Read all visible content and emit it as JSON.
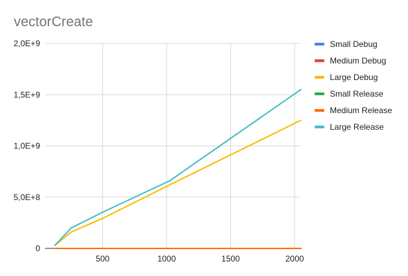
{
  "chart_data": {
    "type": "line",
    "title": "vectorCreate",
    "xlabel": "",
    "ylabel": "",
    "xlim": [
      50,
      2048
    ],
    "ylim": [
      0,
      2000000000
    ],
    "x_ticks": [
      {
        "value": 500,
        "label": "500"
      },
      {
        "value": 1000,
        "label": "1000"
      },
      {
        "value": 1500,
        "label": "1500"
      },
      {
        "value": 2000,
        "label": "2000"
      }
    ],
    "y_ticks": [
      {
        "value": 0,
        "label": "0"
      },
      {
        "value": 500000000,
        "label": "5,0E+8"
      },
      {
        "value": 1000000000,
        "label": "1,0E+9"
      },
      {
        "value": 1500000000,
        "label": "1,5E+9"
      },
      {
        "value": 2000000000,
        "label": "2,0E+9"
      }
    ],
    "grid": true,
    "legend_position": "right",
    "series": [
      {
        "name": "Small Debug",
        "color": "#4285f4",
        "x": [
          128,
          256,
          512,
          1024,
          2048
        ],
        "y": [
          0,
          0,
          0,
          0,
          0
        ]
      },
      {
        "name": "Medium Debug",
        "color": "#ea4335",
        "x": [
          128,
          256,
          512,
          1024,
          2048
        ],
        "y": [
          0,
          0,
          0,
          0,
          0
        ]
      },
      {
        "name": "Large Debug",
        "color": "#fbbc04",
        "x": [
          128,
          256,
          512,
          1024,
          2048
        ],
        "y": [
          30000000,
          160000000,
          300000000,
          620000000,
          1250000000
        ]
      },
      {
        "name": "Small Release",
        "color": "#34a853",
        "x": [
          128,
          256,
          512,
          1024,
          2048
        ],
        "y": [
          0,
          0,
          0,
          0,
          0
        ]
      },
      {
        "name": "Medium Release",
        "color": "#ff6d01",
        "x": [
          128,
          256,
          512,
          1024,
          2048
        ],
        "y": [
          0,
          0,
          0,
          0,
          0
        ]
      },
      {
        "name": "Large Release",
        "color": "#46bdc6",
        "x": [
          128,
          256,
          512,
          1024,
          2048
        ],
        "y": [
          30000000,
          200000000,
          360000000,
          660000000,
          1550000000
        ]
      }
    ]
  }
}
